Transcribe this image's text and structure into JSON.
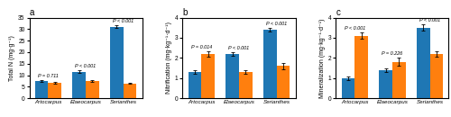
{
  "chart_data": [
    {
      "type": "bar",
      "title": "a",
      "ylabel": "Total N (mg·g⁻¹)",
      "categories": [
        "Artocarpus",
        "Elaeocarpus",
        "Serianthes"
      ],
      "series": [
        {
          "values": [
            7.5,
            11.5,
            31.0
          ],
          "errors": [
            0.3,
            0.5,
            0.6
          ]
        },
        {
          "values": [
            6.8,
            7.5,
            6.5
          ],
          "errors": [
            0.4,
            0.3,
            0.3
          ]
        }
      ],
      "annotations": [
        "P = 0.711",
        "P < 0.001",
        "P < 0.001"
      ],
      "ylim": [
        0,
        35
      ],
      "yticks": [
        0,
        5,
        10,
        15,
        20,
        25,
        30,
        35
      ]
    },
    {
      "type": "bar",
      "title": "b",
      "ylabel": "Nitrification (mg·kg⁻¹·d⁻¹)",
      "categories": [
        "Artocarpus",
        "Elaeocarpus",
        "Serianthes"
      ],
      "series": [
        {
          "values": [
            1.3,
            2.2,
            3.4
          ],
          "errors": [
            0.1,
            0.08,
            0.1
          ]
        },
        {
          "values": [
            2.2,
            1.3,
            1.6
          ],
          "errors": [
            0.12,
            0.08,
            0.15
          ]
        }
      ],
      "annotations": [
        "P = 0.014",
        "P < 0.001",
        "P < 0.001"
      ],
      "ylim": [
        0,
        4
      ],
      "yticks": [
        0,
        1,
        2,
        3,
        4
      ]
    },
    {
      "type": "bar",
      "title": "c",
      "ylabel": "Mineralization (mg·kg⁻¹·d⁻¹)",
      "categories": [
        "Artocarpus",
        "Elaeocarpus",
        "Serianthes"
      ],
      "series": [
        {
          "values": [
            1.0,
            1.4,
            3.5
          ],
          "errors": [
            0.1,
            0.1,
            0.15
          ]
        },
        {
          "values": [
            3.1,
            1.8,
            2.2
          ],
          "errors": [
            0.15,
            0.2,
            0.15
          ]
        }
      ],
      "annotations": [
        "P < 0.001",
        "P = 0.226",
        "P < 0.001"
      ],
      "ylim": [
        0,
        4
      ],
      "yticks": [
        0,
        1,
        2,
        3,
        4
      ]
    }
  ]
}
